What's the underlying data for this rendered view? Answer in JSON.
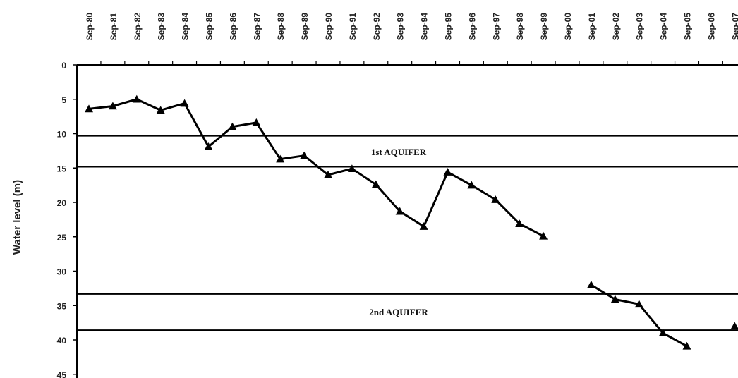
{
  "chart_data": {
    "type": "line",
    "title": "",
    "ylabel": "Water level (m)",
    "xlabel": "",
    "categories": [
      "Sep-80",
      "Sep-81",
      "Sep-82",
      "Sep-83",
      "Sep-84",
      "Sep-85",
      "Sep-86",
      "Sep-87",
      "Sep-88",
      "Sep-89",
      "Sep-90",
      "Sep-91",
      "Sep-92",
      "Sep-93",
      "Sep-94",
      "Sep-95",
      "Sep-96",
      "Sep-97",
      "Sep-98",
      "Sep-99",
      "Sep-00",
      "Sep-01",
      "Sep-02",
      "Sep-03",
      "Sep-04",
      "Sep-05",
      "Sep-06",
      "Sep-07"
    ],
    "yticks": [
      0,
      5,
      10,
      15,
      20,
      25,
      30,
      35,
      40,
      45
    ],
    "ylim": [
      0,
      45
    ],
    "y_inverted": true,
    "x_axis_position": "top",
    "grid": false,
    "legend": "none",
    "series": [
      {
        "values": [
          6.4,
          6.0,
          5.0,
          6.6,
          5.6,
          11.9,
          9.0,
          8.4,
          13.7,
          13.2,
          16.0,
          15.1,
          17.4,
          21.3,
          23.5,
          15.6,
          17.5,
          19.6,
          23.1,
          24.9,
          null,
          32.0,
          34.1,
          34.8,
          39.0,
          40.9,
          null,
          38.0
        ],
        "color": "#000000",
        "marker": "triangle"
      }
    ],
    "reference_lines": [
      {
        "y": 10.3
      },
      {
        "y": 14.8
      },
      {
        "y": 33.3
      },
      {
        "y": 38.6
      }
    ],
    "annotations": [
      {
        "text": "1st AQUIFER",
        "y": 12.6
      },
      {
        "text": "2nd AQUIFER",
        "y": 35.9
      }
    ]
  }
}
